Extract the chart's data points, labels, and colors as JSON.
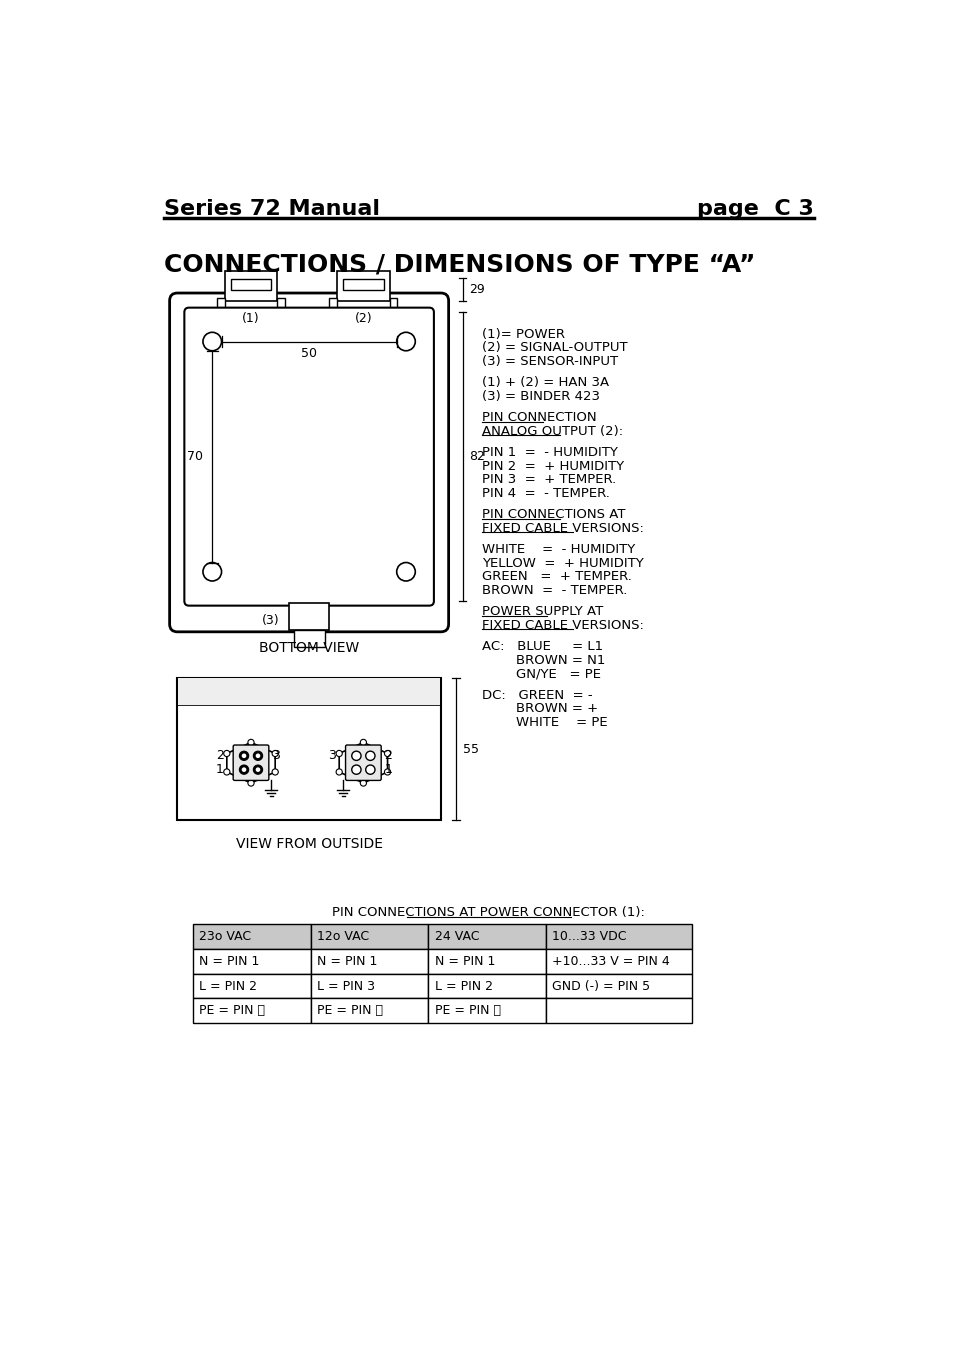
{
  "header_left": "Series 72 Manual",
  "header_right": "page  C 3",
  "title": "CONNECTIONS / DIMENSIONS OF TYPE “A”",
  "bottom_view_label": "BOTTOM VIEW",
  "view_from_outside_label": "VIEW FROM OUTSIDE",
  "dim_29": "29",
  "dim_82": "82",
  "dim_50": "50",
  "dim_70": "70",
  "dim_55": "55",
  "right_text_lines": [
    {
      "text": "(1)= POWER",
      "underline": false
    },
    {
      "text": "(2) = SIGNAL-OUTPUT",
      "underline": false
    },
    {
      "text": "(3) = SENSOR-INPUT",
      "underline": false
    },
    {
      "text": "",
      "underline": false
    },
    {
      "text": "(1) + (2) = HAN 3A",
      "underline": false
    },
    {
      "text": "(3) = BINDER 423",
      "underline": false
    },
    {
      "text": "",
      "underline": false
    },
    {
      "text": "PIN CONNECTION",
      "underline": true
    },
    {
      "text": "ANALOG OUTPUT (2):",
      "underline": true
    },
    {
      "text": "",
      "underline": false
    },
    {
      "text": "PIN 1  =  - HUMIDITY",
      "underline": false
    },
    {
      "text": "PIN 2  =  + HUMIDITY",
      "underline": false
    },
    {
      "text": "PIN 3  =  + TEMPER.",
      "underline": false
    },
    {
      "text": "PIN 4  =  - TEMPER.",
      "underline": false
    },
    {
      "text": "",
      "underline": false
    },
    {
      "text": "PIN CONNECTIONS AT",
      "underline": true
    },
    {
      "text": "FIXED CABLE VERSIONS:",
      "underline": true
    },
    {
      "text": "",
      "underline": false
    },
    {
      "text": "WHITE    =  - HUMIDITY",
      "underline": false
    },
    {
      "text": "YELLOW  =  + HUMIDITY",
      "underline": false
    },
    {
      "text": "GREEN   =  + TEMPER.",
      "underline": false
    },
    {
      "text": "BROWN  =  - TEMPER.",
      "underline": false
    },
    {
      "text": "",
      "underline": false
    },
    {
      "text": "POWER SUPPLY AT",
      "underline": true
    },
    {
      "text": "FIXED CABLE VERSIONS:",
      "underline": true
    },
    {
      "text": "",
      "underline": false
    },
    {
      "text": "AC:   BLUE     = L1",
      "underline": false
    },
    {
      "text": "        BROWN = N1",
      "underline": false
    },
    {
      "text": "        GN/YE   = PE",
      "underline": false
    },
    {
      "text": "",
      "underline": false
    },
    {
      "text": "DC:   GREEN  = -",
      "underline": false
    },
    {
      "text": "        BROWN = +",
      "underline": false
    },
    {
      "text": "        WHITE    = PE",
      "underline": false
    }
  ],
  "table_title": "PIN CONNECTIONS AT POWER CONNECTOR (1):",
  "table_headers": [
    "23o VAC",
    "12o VAC",
    "24 VAC",
    "10...33 VDC"
  ],
  "table_rows": [
    [
      "N = PIN 1",
      "N = PIN 1",
      "N = PIN 1",
      "+10...33 V = PIN 4"
    ],
    [
      "L = PIN 2",
      "L = PIN 3",
      "L = PIN 2",
      "GND (-) = PIN 5"
    ],
    [
      "PE = PIN ⏚",
      "PE = PIN ⏚",
      "PE = PIN ⏚",
      ""
    ]
  ],
  "bg_color": "#ffffff",
  "text_color": "#000000",
  "line_color": "#000000",
  "header_gray": "#c8c8c8"
}
